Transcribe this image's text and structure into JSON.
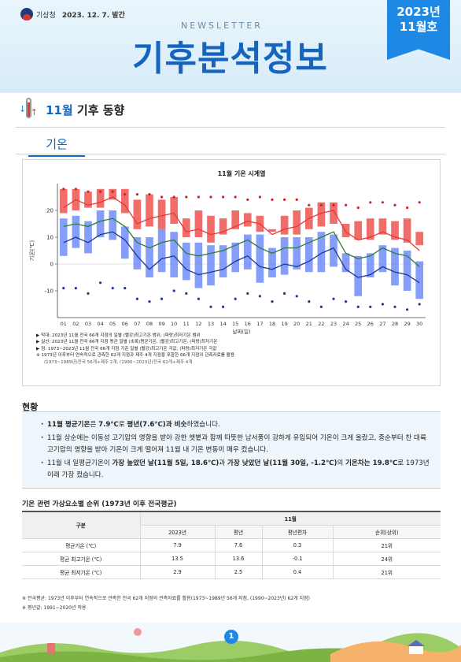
{
  "header": {
    "org": "기상청",
    "issue_date": "2023. 12. 7. 발간",
    "newsletter_label": "NEWSLETTER",
    "title": "기후분석정보",
    "issue_year": "2023년",
    "issue_month": "11월호"
  },
  "section": {
    "title_highlight": "11월",
    "title_rest": "기후 동향",
    "tab": "기온"
  },
  "chart_data": {
    "type": "bar",
    "title": "11월 기온 시계열",
    "xlabel": "날짜(일)",
    "ylabel": "기온(℃)",
    "ylim": [
      -20,
      30
    ],
    "yticks": [
      -10,
      0,
      10,
      20
    ],
    "categories": [
      "01",
      "02",
      "03",
      "04",
      "05",
      "06",
      "07",
      "08",
      "09",
      "10",
      "11",
      "12",
      "13",
      "14",
      "15",
      "16",
      "17",
      "18",
      "19",
      "20",
      "21",
      "22",
      "23",
      "24",
      "25",
      "26",
      "27",
      "28",
      "29",
      "30"
    ],
    "series": [
      {
        "name": "최고기온 범위",
        "color": "#ef5350",
        "low": [
          19,
          20,
          21,
          21,
          24,
          19,
          13,
          14,
          13,
          15,
          10,
          10,
          8,
          11,
          13,
          14,
          12,
          12,
          11,
          11,
          13,
          14,
          15,
          10,
          9,
          9,
          11,
          9,
          8,
          7
        ],
        "high": [
          28,
          28,
          27,
          28,
          28,
          28,
          24,
          26,
          24,
          25,
          17,
          20,
          18,
          17,
          20,
          19,
          18,
          13,
          18,
          20,
          21,
          23,
          23,
          15,
          16,
          17,
          17,
          16,
          17,
          12
        ]
      },
      {
        "name": "최저기온 범위",
        "color": "#5c7cfa",
        "low": [
          3,
          6,
          4,
          10,
          9,
          2,
          -2,
          -5,
          -3,
          -5,
          -6,
          -9,
          -8,
          -5,
          -3,
          -2,
          -7,
          -5,
          -4,
          -2,
          -3,
          -3,
          -1,
          -3,
          -12,
          -5,
          -3,
          -8,
          -10,
          -13
        ],
        "high": [
          17,
          18,
          16,
          20,
          20,
          14,
          10,
          10,
          13,
          12,
          8,
          8,
          7,
          7,
          8,
          11,
          11,
          6,
          10,
          10,
          10,
          12,
          11,
          4,
          3,
          4,
          7,
          6,
          5,
          1
        ]
      },
      {
        "name": "평균기온",
        "color": "#2e7d32",
        "values": [
          14,
          15,
          14,
          16,
          17,
          14,
          8,
          6,
          8,
          9,
          4,
          3,
          4,
          5,
          7,
          9,
          6,
          4,
          6,
          6,
          8,
          10,
          12,
          4,
          2,
          3,
          6,
          4,
          3,
          -1
        ]
      },
      {
        "name": "평균 최고기온",
        "color": "#e53935",
        "values": [
          21,
          24,
          22,
          23,
          25,
          22,
          15,
          17,
          18,
          19,
          12,
          13,
          11,
          12,
          14,
          16,
          15,
          11,
          13,
          14,
          17,
          19,
          20,
          12,
          9,
          10,
          12,
          10,
          9,
          5
        ]
      },
      {
        "name": "평균 최저기온",
        "color": "#1e3a8a",
        "values": [
          8,
          10,
          8,
          11,
          12,
          9,
          3,
          -2,
          2,
          3,
          -2,
          -4,
          -3,
          -2,
          1,
          3,
          -1,
          -2,
          0,
          -1,
          1,
          4,
          6,
          -2,
          -5,
          -4,
          -1,
          -3,
          -4,
          -7
        ]
      },
      {
        "name": "평년 최고기온 극값",
        "color": "#c62828",
        "values": [
          28,
          28,
          27,
          27,
          27,
          26,
          26,
          26,
          25,
          25,
          25,
          25,
          25,
          25,
          25,
          24,
          25,
          24,
          24,
          24,
          22,
          22,
          22,
          22,
          21,
          23,
          23,
          22,
          21,
          23
        ]
      },
      {
        "name": "평년 최저기온 극값",
        "color": "#1e3a8a",
        "values": [
          -9,
          -9,
          -11,
          -7,
          -9,
          -9,
          -13,
          -14,
          -13,
          -10,
          -11,
          -13,
          -16,
          -16,
          -13,
          -11,
          -12,
          -14,
          -11,
          -12,
          -14,
          -16,
          -13,
          -14,
          -16,
          -16,
          -15,
          -16,
          -17,
          -15
        ]
      }
    ],
    "grid": false,
    "legend": "none"
  },
  "chart_notes": [
    "▶ 막대: 2023년 11월 전국 66개 지점의 일별 (빨강)최고기온 범위, (파랑)최저기온 범위",
    "▶ 실선: 2023년 11월 전국 66개 지점 평균 일별 (초록)평균기온, (빨강)최고기온, (파랑)최저기온",
    "▶ 점: 1973~2023년 11월 전국 66개 지점 기준 일별 (빨강)최고기온 극값, (파랑)최저기온 극값",
    "※ 1973년 이후부터 연속적으로 관측한 62개 지점과 제주 4개 지점을 포함한 66개 지점의 관측자료를 활용",
    "(1973~1989년)전국 56개+제주 2개, (1990~2023년)전국 62개+제주 4개"
  ],
  "status": {
    "title": "현황",
    "items": [
      {
        "pre": "",
        "bold": "11월 평균기온",
        "mid": "은 ",
        "bold2": "7.9℃",
        "mid2": "로 ",
        "bold3": "평년(7.6℃)과 비슷",
        "post": "하였습니다."
      },
      {
        "pre": "11월 상순에는 이동성 고기압의 영향을 받아 강한 햇볕과 함께 따뜻한 남서풍이 강하게 유입되어 기온이 크게 올랐고, 중순부터 찬 대륙고기압의 영향을 받아 기온이 크게 떨어져 11월 내 기온 변동이 매우 컸습니다.",
        "bold": "",
        "mid": "",
        "bold2": "",
        "mid2": "",
        "bold3": "",
        "post": ""
      },
      {
        "pre": "11월 내 일평균기온이 ",
        "bold": "가장 높았던 날(11월 5일, 18.6℃)",
        "mid": "과 ",
        "bold2": "가장 낮았던 날(11월 30일, -1.2℃)",
        "mid2": "의 ",
        "bold3": "기온차는 19.8℃",
        "post": "로 1973년 이래 가장 컸습니다."
      }
    ]
  },
  "table": {
    "title": "기온 관련 가상요소별 순위 (1973년 이후 전국평균)",
    "col_group": "구분",
    "month": "11월",
    "headers": [
      "2023년",
      "평년",
      "평년편차",
      "순위(상위)"
    ],
    "rows": [
      {
        "label": "평균기온 (℃)",
        "cells": [
          "7.9",
          "7.6",
          "0.3",
          "21위"
        ]
      },
      {
        "label": "평균 최고기온 (℃)",
        "cells": [
          "13.5",
          "13.6",
          "-0.1",
          "24위"
        ]
      },
      {
        "label": "평균 최저기온 (℃)",
        "cells": [
          "2.9",
          "2.5",
          "0.4",
          "21위"
        ]
      }
    ]
  },
  "footnotes": [
    "※ 전국평균: 1973년 이후부터 연속적으로 관측한 전국 62개 지점의 관측자료를 활용(1973~1989년 56개 지점, (1990~2023년) 62개 지점)",
    "※ 평년값: 1991~2020년 적용"
  ],
  "page_number": "1"
}
